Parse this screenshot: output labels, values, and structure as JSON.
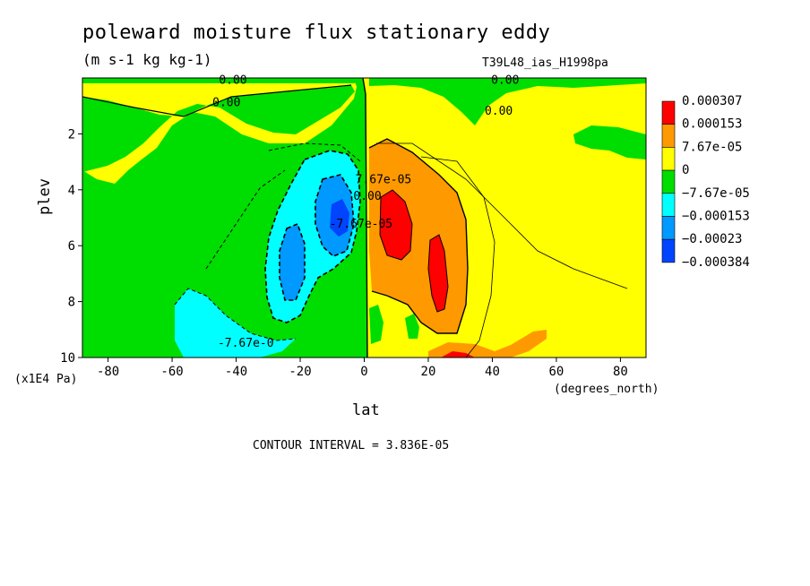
{
  "chart_data": {
    "type": "heatmap",
    "title": "poleward moisture flux stationary eddy",
    "units": "(m s-1 kg kg-1)",
    "run_id": "T39L48_ias_H1998pa",
    "xlabel": "lat",
    "ylabel": "plev",
    "x_unit_label": "(degrees_north)",
    "y_unit_label": "(x1E4 Pa)",
    "xlim": [
      -88,
      88
    ],
    "ylim": [
      10,
      0
    ],
    "x_ticks": [
      "-80",
      "-60",
      "-40",
      "-20",
      "0",
      "20",
      "40",
      "60",
      "80"
    ],
    "y_ticks": [
      "2",
      "4",
      "6",
      "8",
      "10"
    ],
    "contour_interval": "CONTOUR INTERVAL = 3.836E-05",
    "legend": {
      "placement": "right",
      "labels": [
        "0.000307",
        "0.000153",
        "7.67e-05",
        "0",
        "−7.67e-05",
        "−0.000153",
        "−0.00023",
        "−0.000384"
      ],
      "colors": [
        "#ff0000",
        "#ff9900",
        "#ffff00",
        "#00dd00",
        "#00ffff",
        "#0099ff",
        "#0044ff"
      ]
    },
    "contour_labels": [
      {
        "text": "0.00",
        "lat": -41,
        "plev": 0.05
      },
      {
        "text": "0.00",
        "lat": -43,
        "plev": 0.85
      },
      {
        "text": "0.00",
        "lat": 44,
        "plev": 0.05
      },
      {
        "text": "0.00",
        "lat": 42,
        "plev": 1.15
      },
      {
        "text": "-7.67e-0",
        "lat": -37,
        "plev": 9.45
      },
      {
        "text": "7.67e-05",
        "lat": 6,
        "plev": 3.6
      },
      {
        "text": "-7.67e-05",
        "lat": -1,
        "plev": 5.2
      },
      {
        "text": "0.00",
        "lat": 1,
        "plev": 4.2
      }
    ]
  }
}
